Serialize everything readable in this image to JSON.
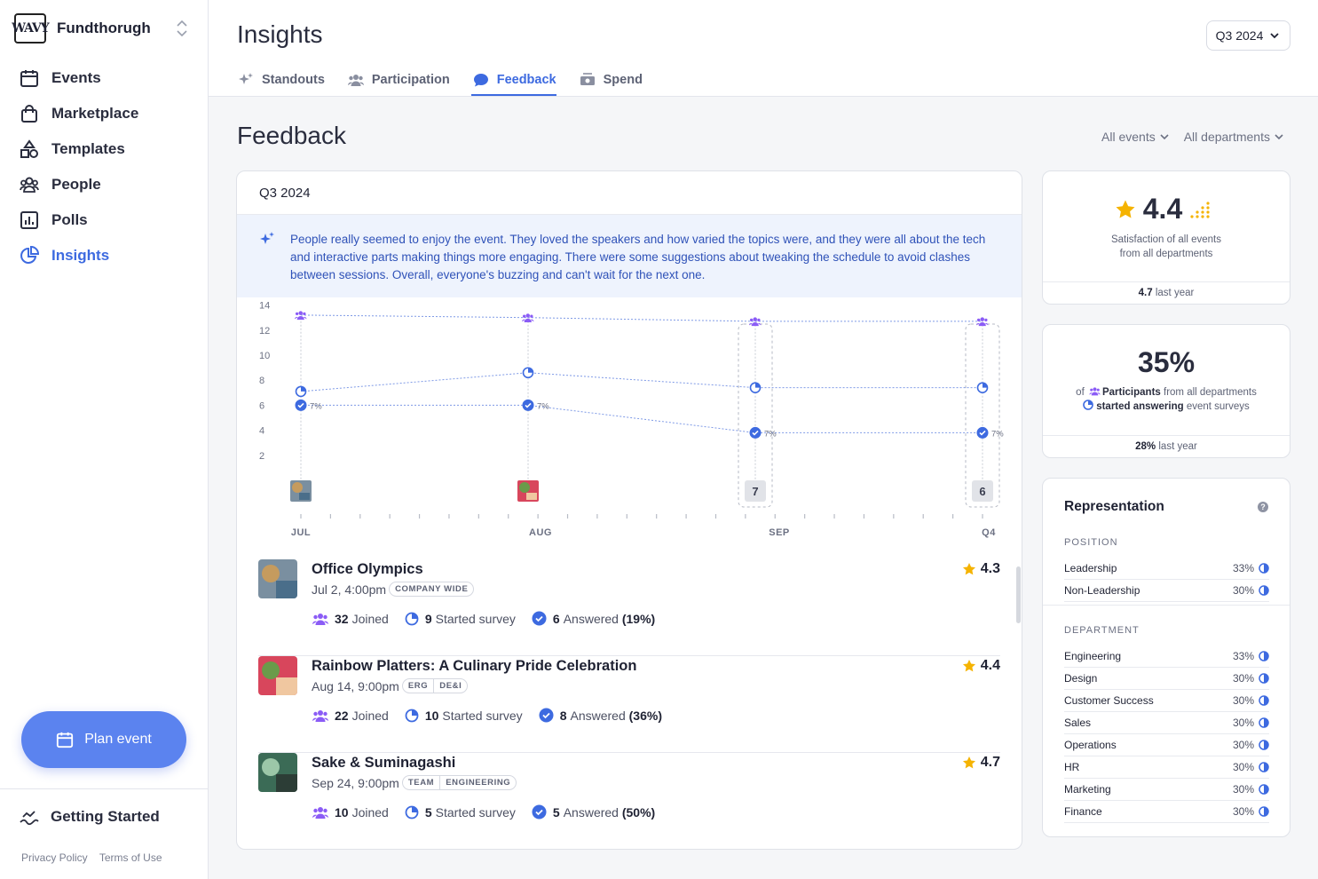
{
  "sidebar": {
    "logo_text": "WAVY",
    "brand": "Fundthorugh",
    "items": [
      {
        "label": "Events",
        "icon": "calendar-icon"
      },
      {
        "label": "Marketplace",
        "icon": "shopping-bag-icon"
      },
      {
        "label": "Templates",
        "icon": "shapes-icon"
      },
      {
        "label": "People",
        "icon": "people-icon"
      },
      {
        "label": "Polls",
        "icon": "bar-chart-icon"
      },
      {
        "label": "Insights",
        "icon": "pie-chart-icon",
        "active": true
      }
    ],
    "plan_button": "Plan event",
    "getting_started": "Getting Started",
    "privacy": "Privacy Policy",
    "terms": "Terms of Use"
  },
  "header": {
    "title": "Insights",
    "period": "Q3 2024",
    "tabs": [
      {
        "label": "Standouts",
        "icon": "sparkle-icon"
      },
      {
        "label": "Participation",
        "icon": "people-icon"
      },
      {
        "label": "Feedback",
        "icon": "chat-bubble-icon",
        "active": true
      },
      {
        "label": "Spend",
        "icon": "money-icon"
      }
    ]
  },
  "feedback": {
    "title": "Feedback",
    "filters": {
      "events": "All events",
      "departments": "All departments"
    },
    "card_title": "Q3 2024",
    "ai_summary": "People really seemed to enjoy the event. They loved the speakers and how varied the topics were, and they were all about the tech and interactive parts making things more engaging. There were some suggestions about tweaking the schedule to avoid clashes between sessions. Overall, everyone's buzzing and can't wait for the next one."
  },
  "chart_data": {
    "type": "line",
    "y_ticks": [
      14,
      12,
      10,
      8,
      6,
      4,
      2
    ],
    "ylim": [
      0,
      14
    ],
    "x_labels": [
      "JUL",
      "AUG",
      "SEP",
      "Q4"
    ],
    "series": [
      {
        "icon": "participants-icon",
        "values": [
          13.2,
          13.0,
          12.7,
          12.7
        ]
      },
      {
        "icon": "started-survey-icon",
        "values": [
          7.1,
          8.6,
          7.4,
          7.4
        ]
      },
      {
        "icon": "answered-icon",
        "values": [
          6.0,
          6.0,
          3.8,
          3.8
        ]
      }
    ],
    "point_labels": [
      "7%",
      "7%",
      "7%",
      "7%"
    ],
    "markers": [
      "",
      "",
      "7",
      "6"
    ]
  },
  "events": [
    {
      "title": "Office Olympics",
      "date": "Jul 2, 4:00pm",
      "tags": [
        "COMPANY WIDE"
      ],
      "joined": "32",
      "started": "9",
      "answered": "6",
      "answered_pct": "(19%)",
      "rating": "4.3",
      "colors": [
        "#7a8fa0",
        "#c59b5e",
        "#4a6e8a"
      ]
    },
    {
      "title": "Rainbow Platters: A Culinary Pride Celebration",
      "date": "Aug 14, 9:00pm",
      "tags": [
        "ERG",
        "DE&I"
      ],
      "joined": "22",
      "started": "10",
      "answered": "8",
      "answered_pct": "(36%)",
      "rating": "4.4",
      "colors": [
        "#d8465c",
        "#6a9b4a",
        "#f0c7a0"
      ]
    },
    {
      "title": "Sake & Suminagashi",
      "date": "Sep 24, 9:00pm",
      "tags": [
        "TEAM",
        "ENGINEERING"
      ],
      "joined": "10",
      "started": "5",
      "answered": "5",
      "answered_pct": "(50%)",
      "rating": "4.7",
      "colors": [
        "#3b6b56",
        "#9cc7a8",
        "#2c3d36"
      ]
    }
  ],
  "stat_labels": {
    "joined": "Joined",
    "started": "Started survey",
    "answered": "Answered"
  },
  "satisfaction": {
    "score": "4.4",
    "desc1": "Satisfaction of all events",
    "desc2": "from all departments",
    "last_value": "4.7",
    "last_label": "last year"
  },
  "participation": {
    "pct": "35%",
    "of": "of",
    "participants": "Participants",
    "from": "from all departments",
    "started": "started answering",
    "surveys": "event surveys",
    "last_value": "28%",
    "last_label": "last year"
  },
  "representation": {
    "title": "Representation",
    "position_label": "POSITION",
    "positions": [
      {
        "name": "Leadership",
        "value": "33%"
      },
      {
        "name": "Non-Leadership",
        "value": "30%"
      }
    ],
    "department_label": "DEPARTMENT",
    "departments": [
      {
        "name": "Engineering",
        "value": "33%"
      },
      {
        "name": "Design",
        "value": "30%"
      },
      {
        "name": "Customer Success",
        "value": "30%"
      },
      {
        "name": "Sales",
        "value": "30%"
      },
      {
        "name": "Operations",
        "value": "30%"
      },
      {
        "name": "HR",
        "value": "30%"
      },
      {
        "name": "Marketing",
        "value": "30%"
      },
      {
        "name": "Finance",
        "value": "30%"
      }
    ]
  },
  "colors": {
    "accent": "#3d6ae0",
    "purple": "#8b5cf6",
    "star": "#f5b301",
    "button": "#5b83ef"
  }
}
